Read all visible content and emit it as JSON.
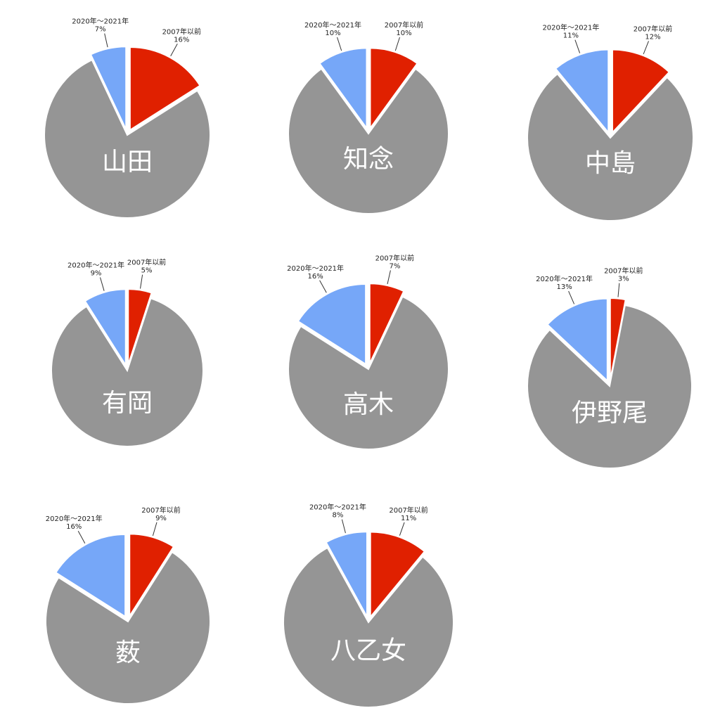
{
  "colors": {
    "before_2007": "#e02000",
    "y2020_2021": "#76a7f8",
    "other": "#959595",
    "background": "#ffffff"
  },
  "chart_data": [
    {
      "type": "pie",
      "label": "山田",
      "slices": [
        {
          "name": "2007年以前",
          "value": 16,
          "label": "16%"
        },
        {
          "name": "2020年〜2021年",
          "value": 7,
          "label": "7%"
        },
        {
          "name": "",
          "value": 77,
          "label": ""
        }
      ]
    },
    {
      "type": "pie",
      "label": "知念",
      "slices": [
        {
          "name": "2007年以前",
          "value": 10,
          "label": "10%"
        },
        {
          "name": "2020年〜2021年",
          "value": 10,
          "label": "10%"
        },
        {
          "name": "",
          "value": 80,
          "label": ""
        }
      ]
    },
    {
      "type": "pie",
      "label": "中島",
      "slices": [
        {
          "name": "2007年以前",
          "value": 12,
          "label": "12%"
        },
        {
          "name": "2020年〜2021年",
          "value": 11,
          "label": "11%"
        },
        {
          "name": "",
          "value": 77,
          "label": ""
        }
      ]
    },
    {
      "type": "pie",
      "label": "有岡",
      "slices": [
        {
          "name": "2007年以前",
          "value": 5,
          "label": "5%"
        },
        {
          "name": "2020年〜2021年",
          "value": 9,
          "label": "9%"
        },
        {
          "name": "",
          "value": 86,
          "label": ""
        }
      ]
    },
    {
      "type": "pie",
      "label": "高木",
      "slices": [
        {
          "name": "2007年以前",
          "value": 7,
          "label": "7%"
        },
        {
          "name": "2020年〜2021年",
          "value": 16,
          "label": "16%"
        },
        {
          "name": "",
          "value": 77,
          "label": ""
        }
      ]
    },
    {
      "type": "pie",
      "label": "伊野尾",
      "slices": [
        {
          "name": "2007年以前",
          "value": 3,
          "label": "3%"
        },
        {
          "name": "2020年〜2021年",
          "value": 13,
          "label": "13%"
        },
        {
          "name": "",
          "value": 84,
          "label": ""
        }
      ]
    },
    {
      "type": "pie",
      "label": "薮",
      "slices": [
        {
          "name": "2007年以前",
          "value": 9,
          "label": "9%"
        },
        {
          "name": "2020年〜2021年",
          "value": 16,
          "label": "16%"
        },
        {
          "name": "",
          "value": 75,
          "label": ""
        }
      ]
    },
    {
      "type": "pie",
      "label": "八乙女",
      "slices": [
        {
          "name": "2007年以前",
          "value": 11,
          "label": "11%"
        },
        {
          "name": "2020年〜2021年",
          "value": 8,
          "label": "8%"
        },
        {
          "name": "",
          "value": 81,
          "label": ""
        }
      ]
    }
  ]
}
